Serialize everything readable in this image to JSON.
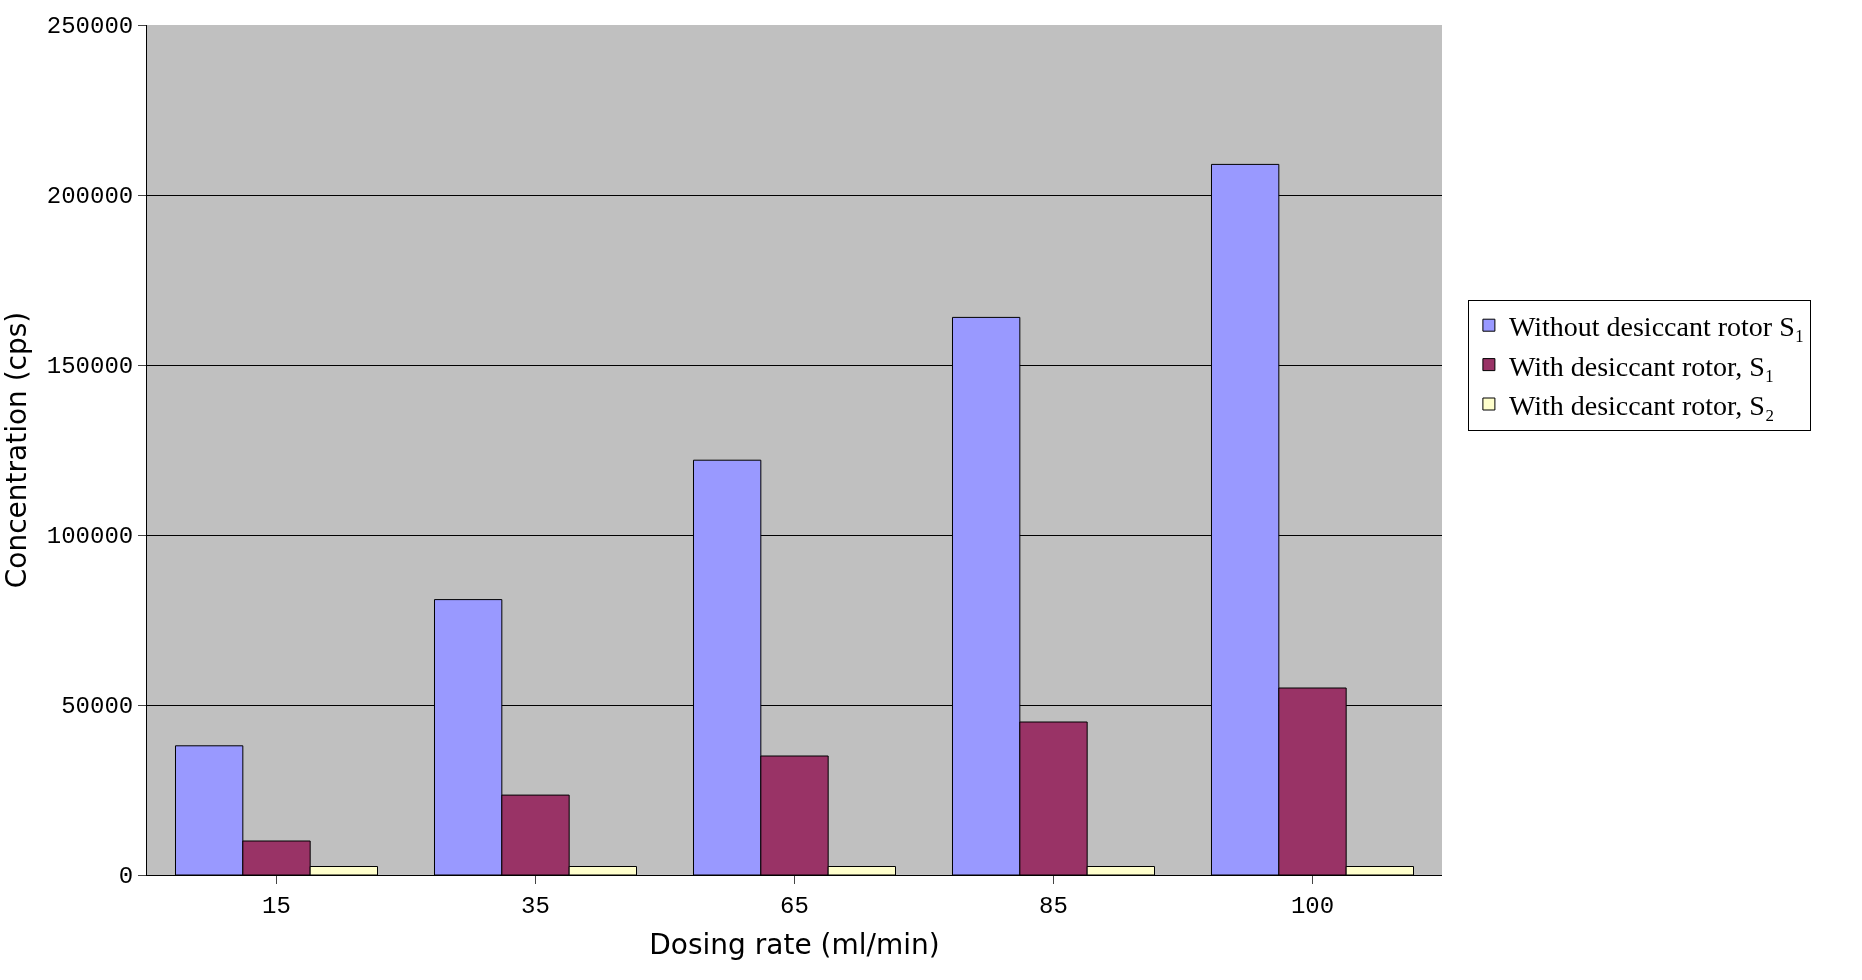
{
  "chart_data": {
    "type": "bar",
    "xlabel": "Dosing rate (ml/min)",
    "ylabel": "Concentration (cps)",
    "categories": [
      "15",
      "35",
      "65",
      "85",
      "100"
    ],
    "series": [
      {
        "name": "Without desiccant rotor S₁",
        "color": "#9999ff",
        "values": [
          38000,
          81000,
          122000,
          164000,
          209000
        ]
      },
      {
        "name": "With desiccant rotor, S₁",
        "color": "#993366",
        "values": [
          10000,
          23500,
          35000,
          45000,
          55000
        ]
      },
      {
        "name": "With desiccant rotor, S₂",
        "color": "#ffffcc",
        "values": [
          2500,
          2500,
          2500,
          2500,
          2500
        ]
      }
    ],
    "ylim": [
      0,
      250000
    ],
    "yticks": [
      0,
      50000,
      100000,
      150000,
      200000,
      250000
    ],
    "grid": "y",
    "legend": "right"
  }
}
